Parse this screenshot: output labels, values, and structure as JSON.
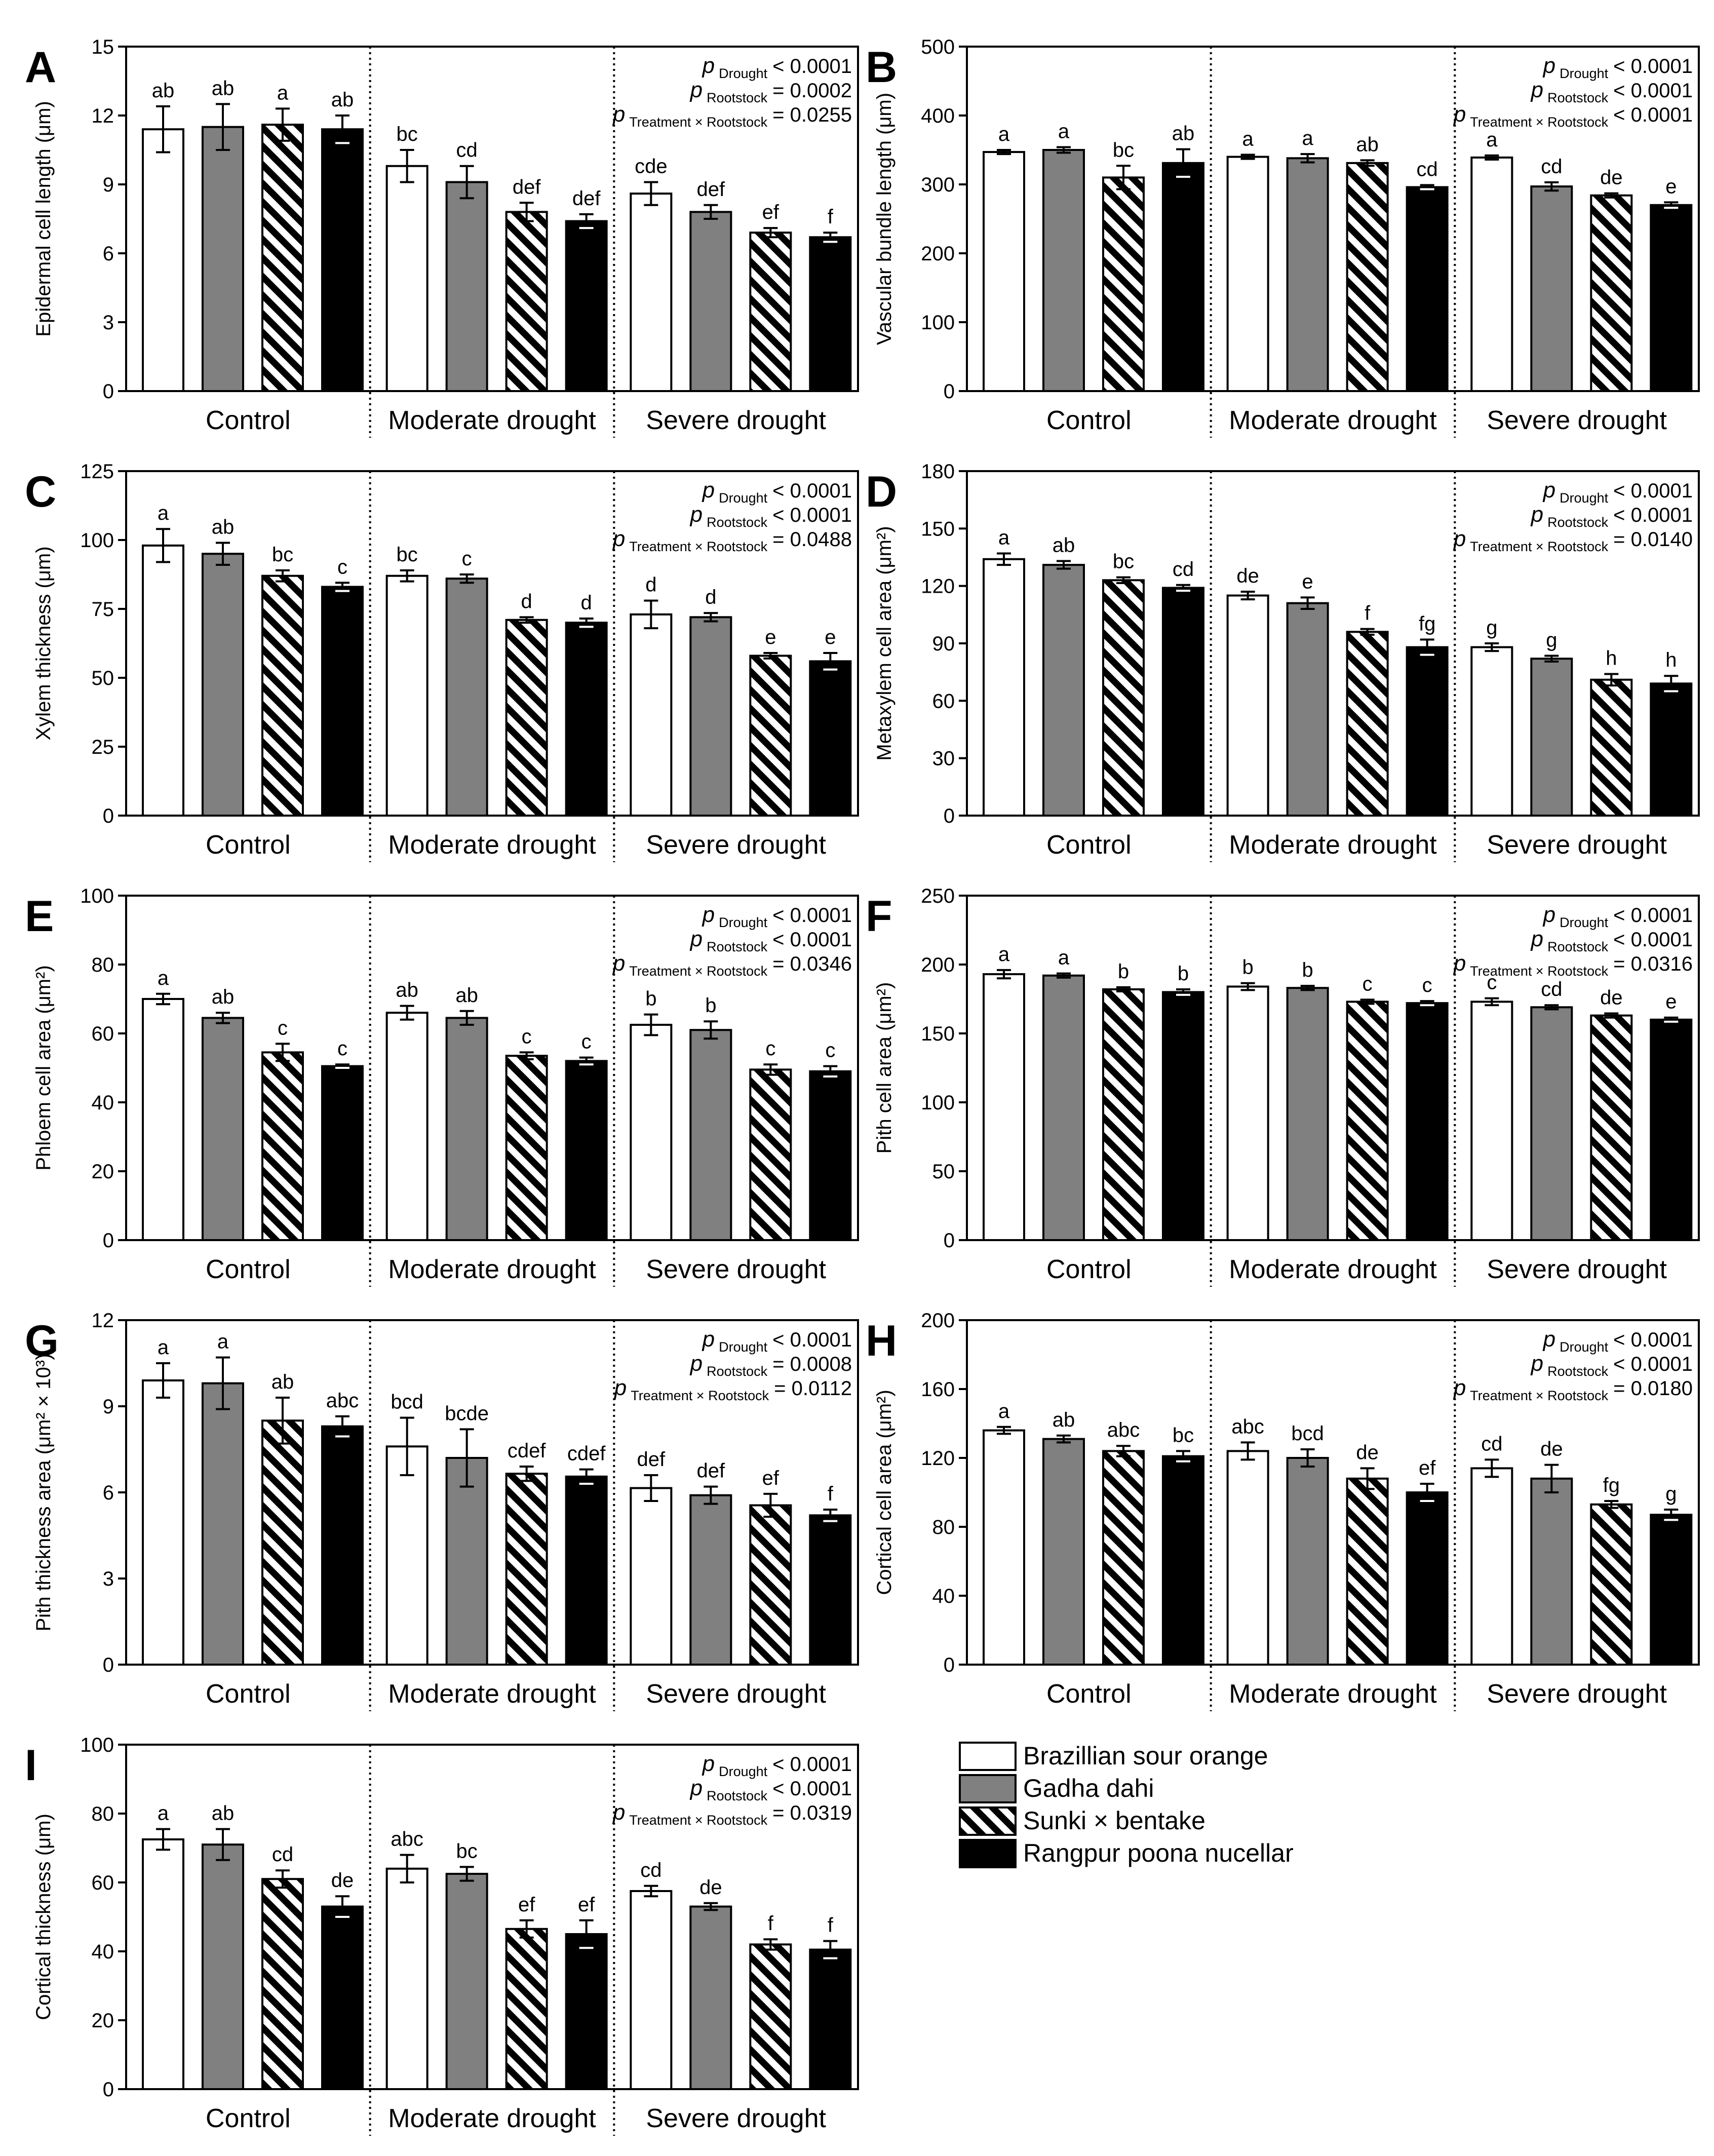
{
  "chart_data": [
    {
      "type": "bar",
      "panel_letter": "A",
      "ylabel": "Epidermal cell length (μm)",
      "ylim": [
        0,
        15
      ],
      "yticks": [
        0,
        3,
        6,
        9,
        12,
        15
      ],
      "groups": [
        "Control",
        "Moderate drought",
        "Severe drought"
      ],
      "series": [
        {
          "name": "Brazillian sour orange",
          "values": [
            11.4,
            9.8,
            8.6
          ],
          "errors": [
            1.0,
            0.7,
            0.5
          ],
          "letters": [
            "ab",
            "bc",
            "cde"
          ]
        },
        {
          "name": "Gadha dahi",
          "values": [
            11.5,
            9.1,
            7.8
          ],
          "errors": [
            1.0,
            0.7,
            0.3
          ],
          "letters": [
            "ab",
            "cd",
            "def"
          ]
        },
        {
          "name": "Sunki × bentake",
          "values": [
            11.6,
            7.8,
            6.9
          ],
          "errors": [
            0.7,
            0.4,
            0.2
          ],
          "letters": [
            "a",
            "def",
            "ef"
          ]
        },
        {
          "name": "Rangpur poona nucellar",
          "values": [
            11.4,
            7.4,
            6.7
          ],
          "errors": [
            0.6,
            0.3,
            0.2
          ],
          "letters": [
            "ab",
            "def",
            "f"
          ]
        }
      ],
      "pvalues": [
        {
          "sub": "Drought",
          "text": "< 0.0001"
        },
        {
          "sub": "Rootstock",
          "text": "= 0.0002"
        },
        {
          "sub": "Treatment × Rootstock",
          "text": "= 0.0255"
        }
      ]
    },
    {
      "type": "bar",
      "panel_letter": "B",
      "ylabel": "Vascular bundle length (μm)",
      "ylim": [
        0,
        500
      ],
      "yticks": [
        0,
        100,
        200,
        300,
        400,
        500
      ],
      "groups": [
        "Control",
        "Moderate drought",
        "Severe drought"
      ],
      "series": [
        {
          "name": "Brazillian sour orange",
          "values": [
            347,
            340,
            339
          ],
          "errors": [
            3,
            3,
            3
          ],
          "letters": [
            "a",
            "a",
            "a"
          ]
        },
        {
          "name": "Gadha dahi",
          "values": [
            350,
            338,
            297
          ],
          "errors": [
            4,
            6,
            6
          ],
          "letters": [
            "a",
            "a",
            "cd"
          ]
        },
        {
          "name": "Sunki × bentake",
          "values": [
            310,
            331,
            284
          ],
          "errors": [
            17,
            4,
            3
          ],
          "letters": [
            "bc",
            "ab",
            "de"
          ]
        },
        {
          "name": "Rangpur poona nucellar",
          "values": [
            331,
            296,
            270
          ],
          "errors": [
            20,
            3,
            4
          ],
          "letters": [
            "ab",
            "cd",
            "e"
          ]
        }
      ],
      "pvalues": [
        {
          "sub": "Drought",
          "text": "< 0.0001"
        },
        {
          "sub": "Rootstock",
          "text": "< 0.0001"
        },
        {
          "sub": "Treatment × Rootstock",
          "text": "< 0.0001"
        }
      ]
    },
    {
      "type": "bar",
      "panel_letter": "C",
      "ylabel": "Xylem thickness (μm)",
      "ylim": [
        0,
        125
      ],
      "yticks": [
        0,
        25,
        50,
        75,
        100,
        125
      ],
      "groups": [
        "Control",
        "Moderate drought",
        "Severe drought"
      ],
      "series": [
        {
          "name": "Brazillian sour orange",
          "values": [
            98,
            87,
            73
          ],
          "errors": [
            6,
            2,
            5
          ],
          "letters": [
            "a",
            "bc",
            "d"
          ]
        },
        {
          "name": "Gadha dahi",
          "values": [
            95,
            86,
            72
          ],
          "errors": [
            4,
            1.5,
            1.5
          ],
          "letters": [
            "ab",
            "c",
            "d"
          ]
        },
        {
          "name": "Sunki × bentake",
          "values": [
            87,
            71,
            58
          ],
          "errors": [
            2,
            1,
            1
          ],
          "letters": [
            "bc",
            "d",
            "e"
          ]
        },
        {
          "name": "Rangpur poona nucellar",
          "values": [
            83,
            70,
            56
          ],
          "errors": [
            1.5,
            1.5,
            3
          ],
          "letters": [
            "c",
            "d",
            "e"
          ]
        }
      ],
      "pvalues": [
        {
          "sub": "Drought",
          "text": "< 0.0001"
        },
        {
          "sub": "Rootstock",
          "text": "< 0.0001"
        },
        {
          "sub": "Treatment × Rootstock",
          "text": "= 0.0488"
        }
      ]
    },
    {
      "type": "bar",
      "panel_letter": "D",
      "ylabel": "Metaxylem cell area (μm²)",
      "ylim": [
        0,
        180
      ],
      "yticks": [
        0,
        30,
        60,
        90,
        120,
        150,
        180
      ],
      "groups": [
        "Control",
        "Moderate drought",
        "Severe drought"
      ],
      "series": [
        {
          "name": "Brazillian sour orange",
          "values": [
            134,
            115,
            88
          ],
          "errors": [
            3,
            2,
            2
          ],
          "letters": [
            "a",
            "de",
            "g"
          ]
        },
        {
          "name": "Gadha dahi",
          "values": [
            131,
            111,
            82
          ],
          "errors": [
            2,
            3,
            1.5
          ],
          "letters": [
            "ab",
            "e",
            "g"
          ]
        },
        {
          "name": "Sunki × bentake",
          "values": [
            123,
            96,
            71
          ],
          "errors": [
            1.5,
            1.5,
            3
          ],
          "letters": [
            "bc",
            "f",
            "h"
          ]
        },
        {
          "name": "Rangpur poona nucellar",
          "values": [
            119,
            88,
            69
          ],
          "errors": [
            1.5,
            4,
            4
          ],
          "letters": [
            "cd",
            "fg",
            "h"
          ]
        }
      ],
      "pvalues": [
        {
          "sub": "Drought",
          "text": "< 0.0001"
        },
        {
          "sub": "Rootstock",
          "text": "< 0.0001"
        },
        {
          "sub": "Treatment × Rootstock",
          "text": "= 0.0140"
        }
      ]
    },
    {
      "type": "bar",
      "panel_letter": "E",
      "ylabel": "Phloem cell area (μm²)",
      "ylim": [
        0,
        100
      ],
      "yticks": [
        0,
        20,
        40,
        60,
        80,
        100
      ],
      "groups": [
        "Control",
        "Moderate drought",
        "Severe drought"
      ],
      "series": [
        {
          "name": "Brazillian sour orange",
          "values": [
            70,
            66,
            62.5
          ],
          "errors": [
            1.5,
            2,
            3
          ],
          "letters": [
            "a",
            "ab",
            "b"
          ]
        },
        {
          "name": "Gadha dahi",
          "values": [
            64.5,
            64.5,
            61
          ],
          "errors": [
            1.5,
            2,
            2.5
          ],
          "letters": [
            "ab",
            "ab",
            "b"
          ]
        },
        {
          "name": "Sunki × bentake",
          "values": [
            54.5,
            53.5,
            49.5
          ],
          "errors": [
            2.5,
            1,
            1.5
          ],
          "letters": [
            "c",
            "c",
            "c"
          ]
        },
        {
          "name": "Rangpur poona nucellar",
          "values": [
            50.5,
            52,
            49
          ],
          "errors": [
            0.5,
            1,
            1.5
          ],
          "letters": [
            "c",
            "c",
            "c"
          ]
        }
      ],
      "pvalues": [
        {
          "sub": "Drought",
          "text": "< 0.0001"
        },
        {
          "sub": "Rootstock",
          "text": "< 0.0001"
        },
        {
          "sub": "Treatment × Rootstock",
          "text": "= 0.0346"
        }
      ]
    },
    {
      "type": "bar",
      "panel_letter": "F",
      "ylabel": "Pith cell area (μm²)",
      "ylim": [
        0,
        250
      ],
      "yticks": [
        0,
        50,
        100,
        150,
        200,
        250
      ],
      "groups": [
        "Control",
        "Moderate drought",
        "Severe drought"
      ],
      "series": [
        {
          "name": "Brazillian sour orange",
          "values": [
            193,
            184,
            173
          ],
          "errors": [
            3,
            2.5,
            2.5
          ],
          "letters": [
            "a",
            "b",
            "c"
          ]
        },
        {
          "name": "Gadha dahi",
          "values": [
            192,
            183,
            169
          ],
          "errors": [
            1.5,
            1.5,
            1.5
          ],
          "letters": [
            "a",
            "b",
            "cd"
          ]
        },
        {
          "name": "Sunki × bentake",
          "values": [
            182,
            173,
            163
          ],
          "errors": [
            1.5,
            1.5,
            1.5
          ],
          "letters": [
            "b",
            "c",
            "de"
          ]
        },
        {
          "name": "Rangpur poona nucellar",
          "values": [
            180,
            172,
            160
          ],
          "errors": [
            2,
            1.5,
            1.5
          ],
          "letters": [
            "b",
            "c",
            "e"
          ]
        }
      ],
      "pvalues": [
        {
          "sub": "Drought",
          "text": "< 0.0001"
        },
        {
          "sub": "Rootstock",
          "text": "< 0.0001"
        },
        {
          "sub": "Treatment × Rootstock",
          "text": "= 0.0316"
        }
      ]
    },
    {
      "type": "bar",
      "panel_letter": "G",
      "ylabel": "Pith thickness area (μm² × 10³)",
      "ylim": [
        0,
        12
      ],
      "yticks": [
        0,
        3,
        6,
        9,
        12
      ],
      "groups": [
        "Control",
        "Moderate drought",
        "Severe drought"
      ],
      "series": [
        {
          "name": "Brazillian sour orange",
          "values": [
            9.9,
            7.6,
            6.15
          ],
          "errors": [
            0.6,
            1.0,
            0.45
          ],
          "letters": [
            "a",
            "bcd",
            "def"
          ]
        },
        {
          "name": "Gadha dahi",
          "values": [
            9.8,
            7.2,
            5.9
          ],
          "errors": [
            0.9,
            1.0,
            0.3
          ],
          "letters": [
            "a",
            "bcde",
            "def"
          ]
        },
        {
          "name": "Sunki × bentake",
          "values": [
            8.5,
            6.65,
            5.55
          ],
          "errors": [
            0.8,
            0.25,
            0.4
          ],
          "letters": [
            "ab",
            "cdef",
            "ef"
          ]
        },
        {
          "name": "Rangpur poona nucellar",
          "values": [
            8.3,
            6.55,
            5.2
          ],
          "errors": [
            0.35,
            0.25,
            0.2
          ],
          "letters": [
            "abc",
            "cdef",
            "f"
          ]
        }
      ],
      "pvalues": [
        {
          "sub": "Drought",
          "text": "< 0.0001"
        },
        {
          "sub": "Rootstock",
          "text": "= 0.0008"
        },
        {
          "sub": "Treatment × Rootstock",
          "text": "= 0.0112"
        }
      ]
    },
    {
      "type": "bar",
      "panel_letter": "H",
      "ylabel": "Cortical cell area (μm²)",
      "ylim": [
        0,
        200
      ],
      "yticks": [
        0,
        40,
        80,
        120,
        160,
        200
      ],
      "groups": [
        "Control",
        "Moderate drought",
        "Severe drought"
      ],
      "series": [
        {
          "name": "Brazillian sour orange",
          "values": [
            136,
            124,
            114
          ],
          "errors": [
            2,
            5,
            5
          ],
          "letters": [
            "a",
            "abc",
            "cd"
          ]
        },
        {
          "name": "Gadha dahi",
          "values": [
            131,
            120,
            108
          ],
          "errors": [
            2,
            5,
            8
          ],
          "letters": [
            "ab",
            "bcd",
            "de"
          ]
        },
        {
          "name": "Sunki × bentake",
          "values": [
            124,
            108,
            93
          ],
          "errors": [
            3,
            6,
            2
          ],
          "letters": [
            "abc",
            "de",
            "fg"
          ]
        },
        {
          "name": "Rangpur poona nucellar",
          "values": [
            121,
            100,
            87
          ],
          "errors": [
            3,
            5,
            3
          ],
          "letters": [
            "bc",
            "ef",
            "g"
          ]
        }
      ],
      "pvalues": [
        {
          "sub": "Drought",
          "text": "< 0.0001"
        },
        {
          "sub": "Rootstock",
          "text": "< 0.0001"
        },
        {
          "sub": "Treatment × Rootstock",
          "text": "= 0.0180"
        }
      ]
    },
    {
      "type": "bar",
      "panel_letter": "I",
      "ylabel": "Cortical thickness (μm)",
      "ylim": [
        0,
        100
      ],
      "yticks": [
        0,
        20,
        40,
        60,
        80,
        100
      ],
      "groups": [
        "Control",
        "Moderate drought",
        "Severe drought"
      ],
      "series": [
        {
          "name": "Brazillian sour orange",
          "values": [
            72.5,
            64,
            57.5
          ],
          "errors": [
            3,
            4,
            1.5
          ],
          "letters": [
            "a",
            "abc",
            "cd"
          ]
        },
        {
          "name": "Gadha dahi",
          "values": [
            71,
            62.5,
            53
          ],
          "errors": [
            4.5,
            2,
            1
          ],
          "letters": [
            "ab",
            "bc",
            "de"
          ]
        },
        {
          "name": "Sunki × bentake",
          "values": [
            61,
            46.5,
            42
          ],
          "errors": [
            2.5,
            2.5,
            1.5
          ],
          "letters": [
            "cd",
            "ef",
            "f"
          ]
        },
        {
          "name": "Rangpur poona nucellar",
          "values": [
            53,
            45,
            40.5
          ],
          "errors": [
            3,
            4,
            2.5
          ],
          "letters": [
            "de",
            "ef",
            "f"
          ]
        }
      ],
      "pvalues": [
        {
          "sub": "Drought",
          "text": "< 0.0001"
        },
        {
          "sub": "Rootstock",
          "text": "< 0.0001"
        },
        {
          "sub": "Treatment × Rootstock",
          "text": "= 0.0319"
        }
      ]
    }
  ],
  "legend": {
    "p_symbol": "p",
    "items": [
      {
        "label": "Brazillian sour orange",
        "fill": "#ffffff",
        "pattern": "none"
      },
      {
        "label": "Gadha dahi",
        "fill": "#808080",
        "pattern": "none"
      },
      {
        "label": "Sunki × bentake",
        "fill": "#ffffff",
        "pattern": "diagonal-stripes"
      },
      {
        "label": "Rangpur poona nucellar",
        "fill": "#000000",
        "pattern": "none"
      }
    ]
  }
}
